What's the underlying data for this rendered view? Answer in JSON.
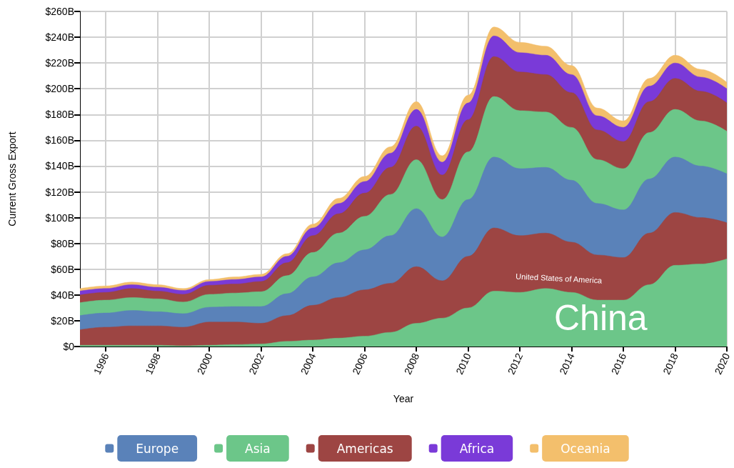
{
  "chart_data": {
    "type": "area",
    "stacked": true,
    "xlabel": "Year",
    "ylabel": "Current Gross Export",
    "x": [
      1995,
      1996,
      1997,
      1998,
      1999,
      2000,
      2001,
      2002,
      2003,
      2004,
      2005,
      2006,
      2007,
      2008,
      2009,
      2010,
      2011,
      2012,
      2013,
      2014,
      2015,
      2016,
      2017,
      2018,
      2019,
      2020
    ],
    "series": [
      {
        "color": "#6cc689",
        "values": [
          1,
          1,
          1,
          1,
          0.5,
          1,
          1.5,
          2,
          4,
          5,
          6.5,
          8,
          11,
          18,
          22,
          30,
          43,
          42,
          45,
          42,
          36,
          36,
          48,
          63,
          64,
          68
        ]
      },
      {
        "color": "#9d4543",
        "values": [
          12,
          14,
          15,
          15,
          14.5,
          18,
          17.5,
          16,
          20,
          27,
          31.5,
          36,
          38,
          44,
          29,
          40,
          49,
          44,
          43,
          39,
          35,
          33,
          40,
          41,
          36,
          28
        ]
      },
      {
        "name": "Europe",
        "color": "#5a82b9",
        "values": [
          11,
          11,
          12,
          11,
          10.5,
          11.5,
          12,
          13,
          17,
          22,
          27,
          31,
          37,
          45,
          34,
          44,
          55,
          52,
          51,
          48,
          40,
          37,
          42,
          43,
          40,
          38
        ]
      },
      {
        "name": "Asia",
        "color": "#6cc689",
        "values": [
          10,
          10,
          10,
          10,
          9,
          10,
          10.5,
          11.5,
          14,
          19,
          23,
          26,
          32,
          38,
          29,
          37,
          47,
          45,
          43,
          41,
          34,
          32,
          36,
          37,
          35,
          33
        ]
      },
      {
        "name": "Americas",
        "color": "#9d4543",
        "values": [
          6,
          6,
          7,
          6,
          6,
          7,
          7,
          8,
          10,
          13,
          15,
          18,
          21,
          26,
          19,
          25,
          31,
          30,
          29,
          27,
          23,
          21,
          24,
          24,
          23,
          22
        ]
      },
      {
        "name": "Africa",
        "color": "#7a3ad8",
        "values": [
          3,
          3,
          3,
          3,
          3,
          3,
          3.5,
          3.5,
          5,
          6,
          8,
          9,
          11,
          13,
          10,
          13,
          16,
          15,
          15,
          14,
          11,
          11,
          12,
          12,
          11,
          11
        ]
      },
      {
        "name": "Oceania",
        "color": "#f3bf6c",
        "values": [
          2,
          2,
          2,
          2,
          1.5,
          1.5,
          2,
          2,
          2,
          3,
          4,
          4,
          5,
          6,
          5,
          6,
          7,
          8,
          7,
          7,
          6,
          5,
          6,
          6,
          6,
          5
        ]
      }
    ],
    "annotations": [
      "United States of America",
      "China"
    ],
    "xlim": [
      1995,
      2020
    ],
    "xticks": [
      1996,
      1998,
      2000,
      2002,
      2004,
      2006,
      2008,
      2010,
      2012,
      2014,
      2016,
      2018,
      2020
    ],
    "ylim": [
      0,
      260
    ],
    "yticks": [
      {
        "value": 0,
        "label": "$0"
      },
      {
        "value": 20,
        "label": "$20B"
      },
      {
        "value": 40,
        "label": "$40B"
      },
      {
        "value": 60,
        "label": "$60B"
      },
      {
        "value": 80,
        "label": "$80B"
      },
      {
        "value": 100,
        "label": "$100B"
      },
      {
        "value": 120,
        "label": "$120B"
      },
      {
        "value": 140,
        "label": "$140B"
      },
      {
        "value": 160,
        "label": "$160B"
      },
      {
        "value": 180,
        "label": "$180B"
      },
      {
        "value": 200,
        "label": "$200B"
      },
      {
        "value": 220,
        "label": "$220B"
      },
      {
        "value": 240,
        "label": "$240B"
      },
      {
        "value": 260,
        "label": "$260B"
      }
    ],
    "grid": true,
    "legend": "bottom"
  }
}
